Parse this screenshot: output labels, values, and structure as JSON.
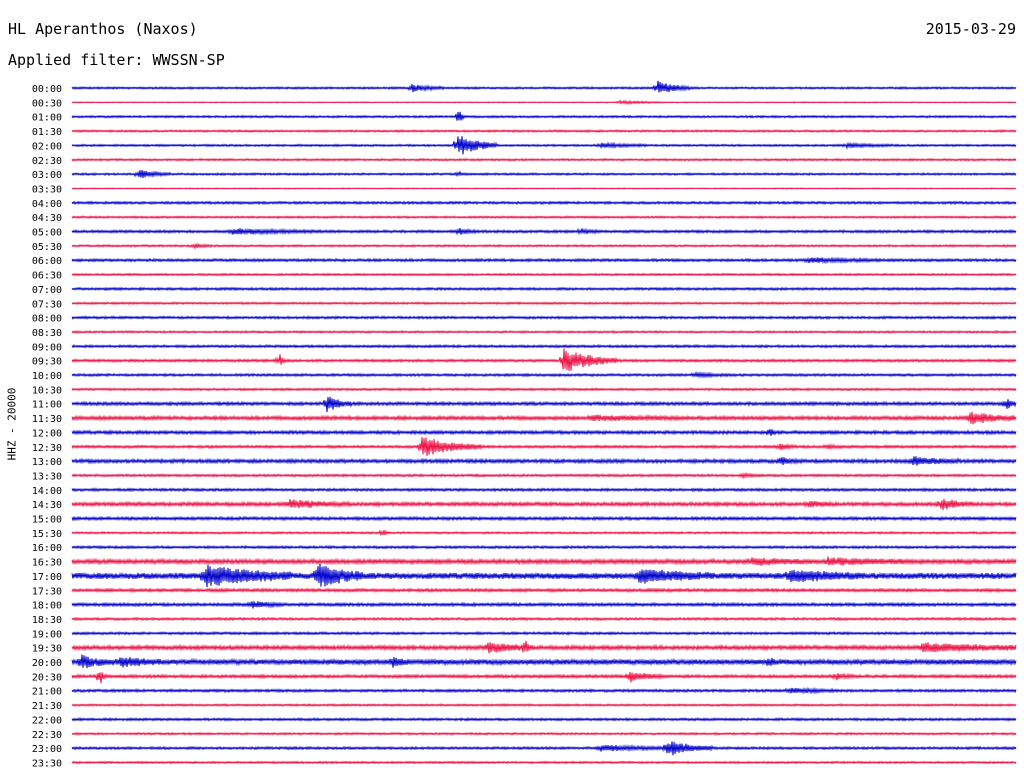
{
  "header": {
    "station": "HL Aperanthos (Naxos)",
    "date": "2015-03-29",
    "filter_prefix": "Applied filter:",
    "filter_name": "WWSSN-SP"
  },
  "channel_label": "HHZ - 20000",
  "colors": {
    "even_row": "#0000cc",
    "odd_row": "#ee1144",
    "text": "#000000",
    "background": "#ffffff"
  },
  "chart_data": {
    "type": "line",
    "title": "HL Aperanthos (Naxos)",
    "ylabel": "HHZ - 20000",
    "row_labels": [
      "00:00",
      "00:30",
      "01:00",
      "01:30",
      "02:00",
      "02:30",
      "03:00",
      "03:30",
      "04:00",
      "04:30",
      "05:00",
      "05:30",
      "06:00",
      "06:30",
      "07:00",
      "07:30",
      "08:00",
      "08:30",
      "09:00",
      "09:30",
      "10:00",
      "10:30",
      "11:00",
      "11:30",
      "12:00",
      "12:30",
      "13:00",
      "13:30",
      "14:00",
      "14:30",
      "15:00",
      "15:30",
      "16:00",
      "16:30",
      "17:00",
      "17:30",
      "18:00",
      "18:30",
      "19:00",
      "19:30",
      "20:00",
      "20:30",
      "21:00",
      "21:30",
      "22:00",
      "22:30",
      "23:00",
      "23:30"
    ],
    "row_duration_minutes": 30,
    "row_colors": [
      "even_row",
      "odd_row"
    ],
    "baseline_noise": [
      1,
      0.5,
      1,
      1,
      1,
      1,
      1,
      0.5,
      1.2,
      1,
      1.3,
      1,
      1.3,
      1,
      1.2,
      1,
      1.2,
      1,
      1.2,
      1.3,
      1.2,
      1.1,
      1.6,
      1.8,
      1.6,
      1.3,
      1.8,
      1.2,
      1.3,
      1.8,
      1.5,
      1,
      1.2,
      2.2,
      3,
      1.5,
      1.5,
      1.2,
      1.2,
      2,
      2.5,
      1.5,
      1.3,
      1,
      1.2,
      1,
      1.2,
      1
    ],
    "events": [
      {
        "row": "00:00",
        "t": 0.36,
        "amp": 4,
        "dur": 0.02
      },
      {
        "row": "00:00",
        "t": 0.62,
        "amp": 7,
        "dur": 0.02
      },
      {
        "row": "00:30",
        "t": 0.58,
        "amp": 1.5,
        "dur": 0.03
      },
      {
        "row": "01:00",
        "t": 0.41,
        "amp": 14,
        "dur": 0.002
      },
      {
        "row": "02:00",
        "t": 0.408,
        "amp": 12,
        "dur": 0.025
      },
      {
        "row": "02:00",
        "t": 0.56,
        "amp": 2,
        "dur": 0.03
      },
      {
        "row": "02:00",
        "t": 0.82,
        "amp": 2,
        "dur": 0.03
      },
      {
        "row": "03:00",
        "t": 0.07,
        "amp": 4,
        "dur": 0.02
      },
      {
        "row": "03:00",
        "t": 0.41,
        "amp": 3,
        "dur": 0.002
      },
      {
        "row": "05:00",
        "t": 0.17,
        "amp": 2.5,
        "dur": 0.06
      },
      {
        "row": "05:00",
        "t": 0.41,
        "amp": 3,
        "dur": 0.01
      },
      {
        "row": "05:00",
        "t": 0.54,
        "amp": 2.5,
        "dur": 0.01
      },
      {
        "row": "05:30",
        "t": 0.13,
        "amp": 2,
        "dur": 0.01
      },
      {
        "row": "06:00",
        "t": 0.78,
        "amp": 2,
        "dur": 0.05
      },
      {
        "row": "09:30",
        "t": 0.52,
        "amp": 12,
        "dur": 0.035
      },
      {
        "row": "09:30",
        "t": 0.22,
        "amp": 6,
        "dur": 0.003
      },
      {
        "row": "10:00",
        "t": 0.66,
        "amp": 2,
        "dur": 0.02
      },
      {
        "row": "11:00",
        "t": 0.27,
        "amp": 8,
        "dur": 0.015
      },
      {
        "row": "11:00",
        "t": 0.99,
        "amp": 7,
        "dur": 0.005
      },
      {
        "row": "11:30",
        "t": 0.95,
        "amp": 6,
        "dur": 0.03
      },
      {
        "row": "11:30",
        "t": 0.55,
        "amp": 2,
        "dur": 0.06
      },
      {
        "row": "12:00",
        "t": 0.74,
        "amp": 6,
        "dur": 0.002
      },
      {
        "row": "12:30",
        "t": 0.37,
        "amp": 10,
        "dur": 0.04
      },
      {
        "row": "12:30",
        "t": 0.75,
        "amp": 3,
        "dur": 0.01
      },
      {
        "row": "12:30",
        "t": 0.8,
        "amp": 2,
        "dur": 0.01
      },
      {
        "row": "13:00",
        "t": 0.75,
        "amp": 4,
        "dur": 0.01
      },
      {
        "row": "13:00",
        "t": 0.89,
        "amp": 4,
        "dur": 0.03
      },
      {
        "row": "13:30",
        "t": 0.71,
        "amp": 2,
        "dur": 0.01
      },
      {
        "row": "14:30",
        "t": 0.23,
        "amp": 4,
        "dur": 0.04
      },
      {
        "row": "14:30",
        "t": 0.78,
        "amp": 3,
        "dur": 0.015
      },
      {
        "row": "14:30",
        "t": 0.92,
        "amp": 6,
        "dur": 0.02
      },
      {
        "row": "15:30",
        "t": 0.33,
        "amp": 4,
        "dur": 0.002
      },
      {
        "row": "16:30",
        "t": 0.72,
        "amp": 3,
        "dur": 0.04
      },
      {
        "row": "16:30",
        "t": 0.8,
        "amp": 3,
        "dur": 0.06
      },
      {
        "row": "17:00",
        "t": 0.14,
        "amp": 10,
        "dur": 0.06
      },
      {
        "row": "17:00",
        "t": 0.26,
        "amp": 12,
        "dur": 0.03
      },
      {
        "row": "17:00",
        "t": 0.6,
        "amp": 6,
        "dur": 0.05
      },
      {
        "row": "17:00",
        "t": 0.76,
        "amp": 5,
        "dur": 0.05
      },
      {
        "row": "18:00",
        "t": 0.19,
        "amp": 3,
        "dur": 0.02
      },
      {
        "row": "19:30",
        "t": 0.44,
        "amp": 5,
        "dur": 0.03
      },
      {
        "row": "19:30",
        "t": 0.48,
        "amp": 8,
        "dur": 0.002
      },
      {
        "row": "19:30",
        "t": 0.9,
        "amp": 4,
        "dur": 0.08
      },
      {
        "row": "20:00",
        "t": 0.01,
        "amp": 6,
        "dur": 0.02
      },
      {
        "row": "20:00",
        "t": 0.05,
        "amp": 4,
        "dur": 0.03
      },
      {
        "row": "20:00",
        "t": 0.34,
        "amp": 4,
        "dur": 0.01
      },
      {
        "row": "20:00",
        "t": 0.74,
        "amp": 5,
        "dur": 0.003
      },
      {
        "row": "20:30",
        "t": 0.03,
        "amp": 10,
        "dur": 0.002
      },
      {
        "row": "20:30",
        "t": 0.59,
        "amp": 6,
        "dur": 0.02
      },
      {
        "row": "20:30",
        "t": 0.81,
        "amp": 3,
        "dur": 0.01
      },
      {
        "row": "21:00",
        "t": 0.76,
        "amp": 2.5,
        "dur": 0.03
      },
      {
        "row": "23:00",
        "t": 0.56,
        "amp": 3,
        "dur": 0.04
      },
      {
        "row": "23:00",
        "t": 0.63,
        "amp": 8,
        "dur": 0.03
      }
    ]
  }
}
